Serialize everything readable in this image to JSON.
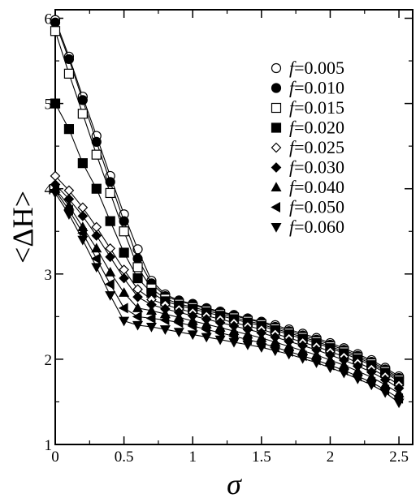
{
  "chart_data": {
    "type": "line",
    "xlabel": "σ",
    "ylabel": "<ΔH>",
    "xlim": [
      0,
      2.6
    ],
    "ylim": [
      1,
      6.1
    ],
    "x_ticks": [
      "0",
      "0.5",
      "1",
      "1.5",
      "2",
      "2.5"
    ],
    "x_tick_values": [
      0,
      0.5,
      1,
      1.5,
      2,
      2.5
    ],
    "y_ticks": [
      "1",
      "2",
      "3",
      "4",
      "5",
      "6"
    ],
    "y_tick_values": [
      1,
      2,
      3,
      4,
      5,
      6
    ],
    "legend_position": "top-right",
    "x": [
      0,
      0.1,
      0.2,
      0.3,
      0.4,
      0.5,
      0.6,
      0.7,
      0.8,
      0.9,
      1.0,
      1.1,
      1.2,
      1.3,
      1.4,
      1.5,
      1.6,
      1.7,
      1.8,
      1.9,
      2.0,
      2.1,
      2.2,
      2.3,
      2.4,
      2.5
    ],
    "series": [
      {
        "label_prefix": "f",
        "label_value": "=0.005",
        "marker": "circle-open",
        "values": [
          5.98,
          5.55,
          5.08,
          4.62,
          4.15,
          3.7,
          3.29,
          2.92,
          2.76,
          2.69,
          2.65,
          2.6,
          2.56,
          2.52,
          2.48,
          2.44,
          2.4,
          2.35,
          2.3,
          2.25,
          2.19,
          2.13,
          2.06,
          1.99,
          1.9,
          1.8
        ]
      },
      {
        "label_prefix": "f",
        "label_value": "=0.010",
        "marker": "circle-filled",
        "values": [
          5.95,
          5.52,
          5.04,
          4.55,
          4.08,
          3.62,
          3.18,
          2.89,
          2.74,
          2.68,
          2.64,
          2.59,
          2.55,
          2.51,
          2.47,
          2.43,
          2.38,
          2.33,
          2.28,
          2.23,
          2.17,
          2.11,
          2.04,
          1.97,
          1.88,
          1.78
        ]
      },
      {
        "label_prefix": "f",
        "label_value": "=0.015",
        "marker": "square-open",
        "values": [
          5.85,
          5.35,
          4.88,
          4.4,
          3.95,
          3.5,
          3.08,
          2.83,
          2.71,
          2.65,
          2.61,
          2.57,
          2.53,
          2.49,
          2.45,
          2.41,
          2.36,
          2.31,
          2.26,
          2.21,
          2.15,
          2.09,
          2.02,
          1.95,
          1.86,
          1.76
        ]
      },
      {
        "label_prefix": "f",
        "label_value": "=0.020",
        "marker": "square-filled",
        "values": [
          5.0,
          4.7,
          4.3,
          4.0,
          3.62,
          3.25,
          2.95,
          2.78,
          2.68,
          2.63,
          2.59,
          2.55,
          2.51,
          2.47,
          2.43,
          2.39,
          2.34,
          2.29,
          2.24,
          2.19,
          2.13,
          2.07,
          2.0,
          1.93,
          1.84,
          1.74
        ]
      },
      {
        "label_prefix": "f",
        "label_value": "=0.025",
        "marker": "diamond-open",
        "values": [
          4.15,
          3.98,
          3.78,
          3.55,
          3.3,
          3.05,
          2.82,
          2.7,
          2.64,
          2.59,
          2.55,
          2.51,
          2.47,
          2.43,
          2.39,
          2.35,
          2.3,
          2.25,
          2.2,
          2.15,
          2.09,
          2.03,
          1.96,
          1.89,
          1.8,
          1.7
        ]
      },
      {
        "label_prefix": "f",
        "label_value": "=0.030",
        "marker": "diamond-filled",
        "values": [
          4.05,
          3.88,
          3.68,
          3.45,
          3.2,
          2.95,
          2.73,
          2.64,
          2.59,
          2.55,
          2.51,
          2.47,
          2.43,
          2.39,
          2.35,
          2.31,
          2.26,
          2.21,
          2.16,
          2.11,
          2.05,
          1.99,
          1.92,
          1.85,
          1.76,
          1.66
        ]
      },
      {
        "label_prefix": "f",
        "label_value": "=0.040",
        "marker": "triangle-up",
        "values": [
          4.0,
          3.8,
          3.55,
          3.3,
          3.02,
          2.78,
          2.6,
          2.57,
          2.53,
          2.49,
          2.45,
          2.41,
          2.37,
          2.33,
          2.29,
          2.25,
          2.2,
          2.15,
          2.1,
          2.05,
          1.99,
          1.93,
          1.86,
          1.79,
          1.7,
          1.6
        ]
      },
      {
        "label_prefix": "f",
        "label_value": "=0.050",
        "marker": "triangle-left",
        "values": [
          3.98,
          3.75,
          3.48,
          3.18,
          2.88,
          2.6,
          2.5,
          2.48,
          2.46,
          2.43,
          2.39,
          2.35,
          2.31,
          2.27,
          2.23,
          2.19,
          2.14,
          2.09,
          2.04,
          1.99,
          1.93,
          1.87,
          1.8,
          1.73,
          1.64,
          1.54
        ]
      },
      {
        "label_prefix": "f",
        "label_value": "=0.060",
        "marker": "triangle-down",
        "values": [
          3.95,
          3.7,
          3.4,
          3.08,
          2.75,
          2.45,
          2.4,
          2.38,
          2.35,
          2.32,
          2.29,
          2.26,
          2.23,
          2.2,
          2.17,
          2.14,
          2.1,
          2.06,
          2.01,
          1.96,
          1.9,
          1.84,
          1.77,
          1.7,
          1.61,
          1.49
        ]
      }
    ]
  }
}
